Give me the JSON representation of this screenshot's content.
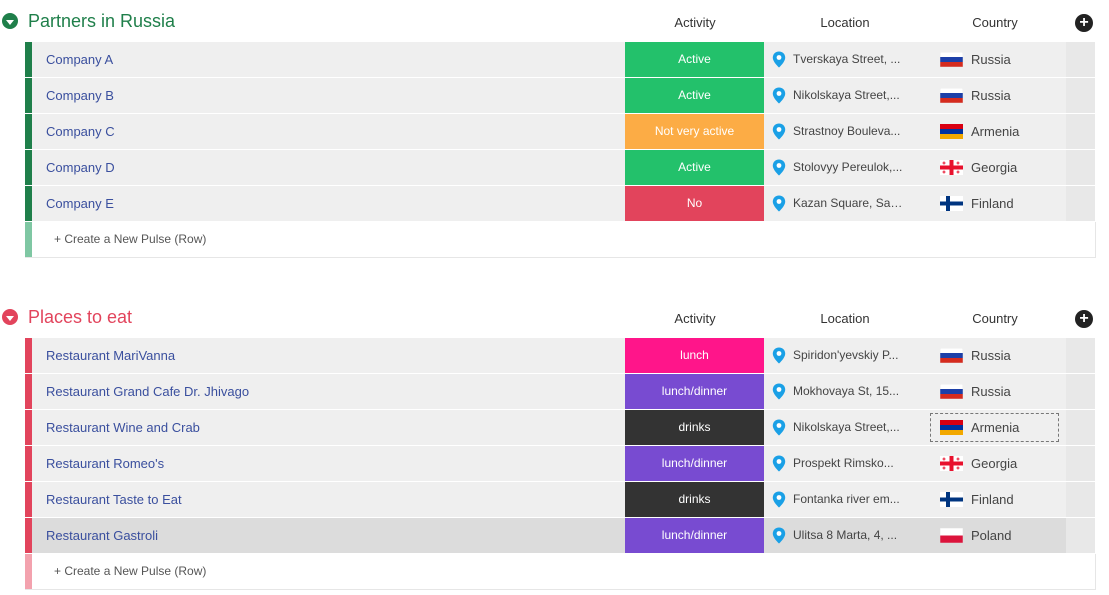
{
  "columns": {
    "activity": "Activity",
    "location": "Location",
    "country": "Country"
  },
  "groups": [
    {
      "title": "Partners in Russia",
      "color": "#1f7f4a",
      "bar_color": "#1f7f4a",
      "new_row_label": "+ Create a New Pulse (Row)",
      "new_row_bar_color": "#7fc7a3",
      "rows": [
        {
          "name": "Company A",
          "status": "Active",
          "status_color": "#23c16b",
          "location": "Tverskaya Street, ...",
          "country": "Russia",
          "flag": "russia"
        },
        {
          "name": "Company B",
          "status": "Active",
          "status_color": "#23c16b",
          "location": "Nikolskaya Street,...",
          "country": "Russia",
          "flag": "russia"
        },
        {
          "name": "Company C",
          "status": "Not very active",
          "status_color": "#fcac45",
          "location": "Strastnoy Bouleva...",
          "country": "Armenia",
          "flag": "armenia"
        },
        {
          "name": "Company D",
          "status": "Active",
          "status_color": "#23c16b",
          "location": "Stolovyy Pereulok,...",
          "country": "Georgia",
          "flag": "georgia"
        },
        {
          "name": "Company E",
          "status": "No",
          "status_color": "#e2445c",
          "location": "Kazan Square, Sai...",
          "country": "Finland",
          "flag": "finland"
        }
      ]
    },
    {
      "title": "Places to eat",
      "color": "#e2445c",
      "bar_color": "#e2445c",
      "new_row_label": "+ Create a New Pulse (Row)",
      "new_row_bar_color": "#f3a2ae",
      "rows": [
        {
          "name": "Restaurant MariVanna",
          "status": "lunch",
          "status_color": "#ff158a",
          "location": "Spiridon'yevskiy P...",
          "country": "Russia",
          "flag": "russia"
        },
        {
          "name": "Restaurant Grand Cafe Dr. Jhivago",
          "status": "lunch/dinner",
          "status_color": "#784bd1",
          "location": "Mokhovaya St, 15...",
          "country": "Russia",
          "flag": "russia"
        },
        {
          "name": "Restaurant Wine and Crab",
          "status": "drinks",
          "status_color": "#333333",
          "location": "Nikolskaya Street,...",
          "country": "Armenia",
          "flag": "armenia",
          "focused": true
        },
        {
          "name": "Restaurant Romeo's",
          "status": "lunch/dinner",
          "status_color": "#784bd1",
          "location": "Prospekt Rimsko...",
          "country": "Georgia",
          "flag": "georgia"
        },
        {
          "name": "Restaurant Taste to Eat",
          "status": "drinks",
          "status_color": "#333333",
          "location": "Fontanka river em...",
          "country": "Finland",
          "flag": "finland"
        },
        {
          "name": "Restaurant Gastroli",
          "status": "lunch/dinner",
          "status_color": "#784bd1",
          "location": "Ulitsa 8 Marta, 4, ...",
          "country": "Poland",
          "flag": "poland",
          "selected": true
        }
      ]
    }
  ],
  "icons": {
    "collapse": "chevron-down-circle-icon",
    "add_column": "plus-circle-icon",
    "location": "map-pin-icon"
  },
  "accent_pin_color": "#1aa0e6"
}
